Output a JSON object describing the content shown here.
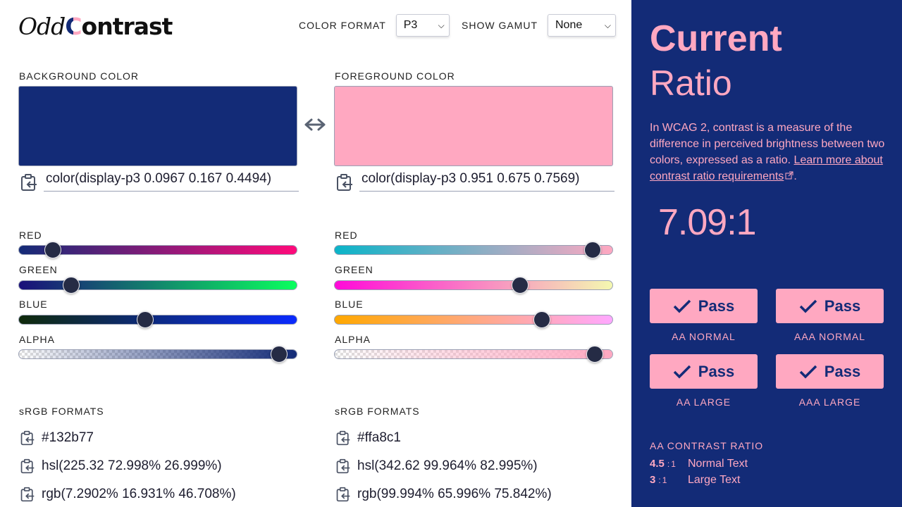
{
  "logo": {
    "part1": "Odd",
    "part2_c": "C",
    "part2_rest": "ontrast"
  },
  "controls": {
    "color_format_label": "COLOR FORMAT",
    "color_format_value": "P3",
    "show_gamut_label": "SHOW GAMUT",
    "show_gamut_value": "None"
  },
  "background": {
    "label": "BACKGROUND COLOR",
    "swatch_color": "#132b77",
    "value": "color(display-p3 0.0967 0.167 0.4494)",
    "sliders": [
      {
        "label": "RED",
        "value": 0.0967,
        "gradient": [
          "#132b77",
          "#ff0a7a"
        ]
      },
      {
        "label": "GREEN",
        "value": 0.167,
        "gradient": [
          "#1a0f7a",
          "#0aff5e"
        ]
      },
      {
        "label": "BLUE",
        "value": 0.4494,
        "gradient": [
          "#0f2a0a",
          "#0a2aff"
        ]
      },
      {
        "label": "ALPHA",
        "value": 0.96,
        "gradient": [
          "rgba(19,43,119,0)",
          "#132b77"
        ]
      }
    ],
    "srgb_label": "sRGB FORMATS",
    "formats": [
      "#132b77",
      "hsl(225.32 72.998% 26.999%)",
      "rgb(7.2902% 16.931% 46.708%)"
    ]
  },
  "foreground": {
    "label": "FOREGROUND COLOR",
    "swatch_color": "#ffa8c1",
    "value": "color(display-p3 0.951 0.675 0.7569)",
    "sliders": [
      {
        "label": "RED",
        "value": 0.951,
        "gradient": [
          "#0ab4c8",
          "#ffa8c1"
        ]
      },
      {
        "label": "GREEN",
        "value": 0.675,
        "gradient": [
          "#ff0ad8",
          "#f4f8b0"
        ]
      },
      {
        "label": "BLUE",
        "value": 0.7569,
        "gradient": [
          "#ffa800",
          "#ffa8ff"
        ]
      },
      {
        "label": "ALPHA",
        "value": 0.96,
        "gradient": [
          "rgba(255,168,193,0)",
          "#ffa8c1"
        ]
      }
    ],
    "srgb_label": "sRGB FORMATS",
    "formats": [
      "#ffa8c1",
      "hsl(342.62 99.964% 82.995%)",
      "rgb(99.994% 65.996% 75.842%)"
    ]
  },
  "sidebar": {
    "title_bold": "Current",
    "title_light": "Ratio",
    "desc_before": "In WCAG 2, contrast is a measure of the difference in perceived brightness between two colors, expressed as a ratio. ",
    "desc_link": "Learn more about contrast ratio requirements",
    "desc_after": ".",
    "ratio": "7.09:1",
    "checks": [
      {
        "status": "Pass",
        "caption": "AA NORMAL"
      },
      {
        "status": "Pass",
        "caption": "AAA NORMAL"
      },
      {
        "status": "Pass",
        "caption": "AA LARGE"
      },
      {
        "status": "Pass",
        "caption": "AAA LARGE"
      }
    ],
    "aa_heading": "AA CONTRAST RATIO",
    "aa_rows": [
      {
        "num": "4.5",
        "colon": ":",
        "one": "1",
        "desc": "Normal Text"
      },
      {
        "num": "3",
        "colon": ":",
        "one": "1",
        "desc": "Large Text"
      }
    ]
  }
}
